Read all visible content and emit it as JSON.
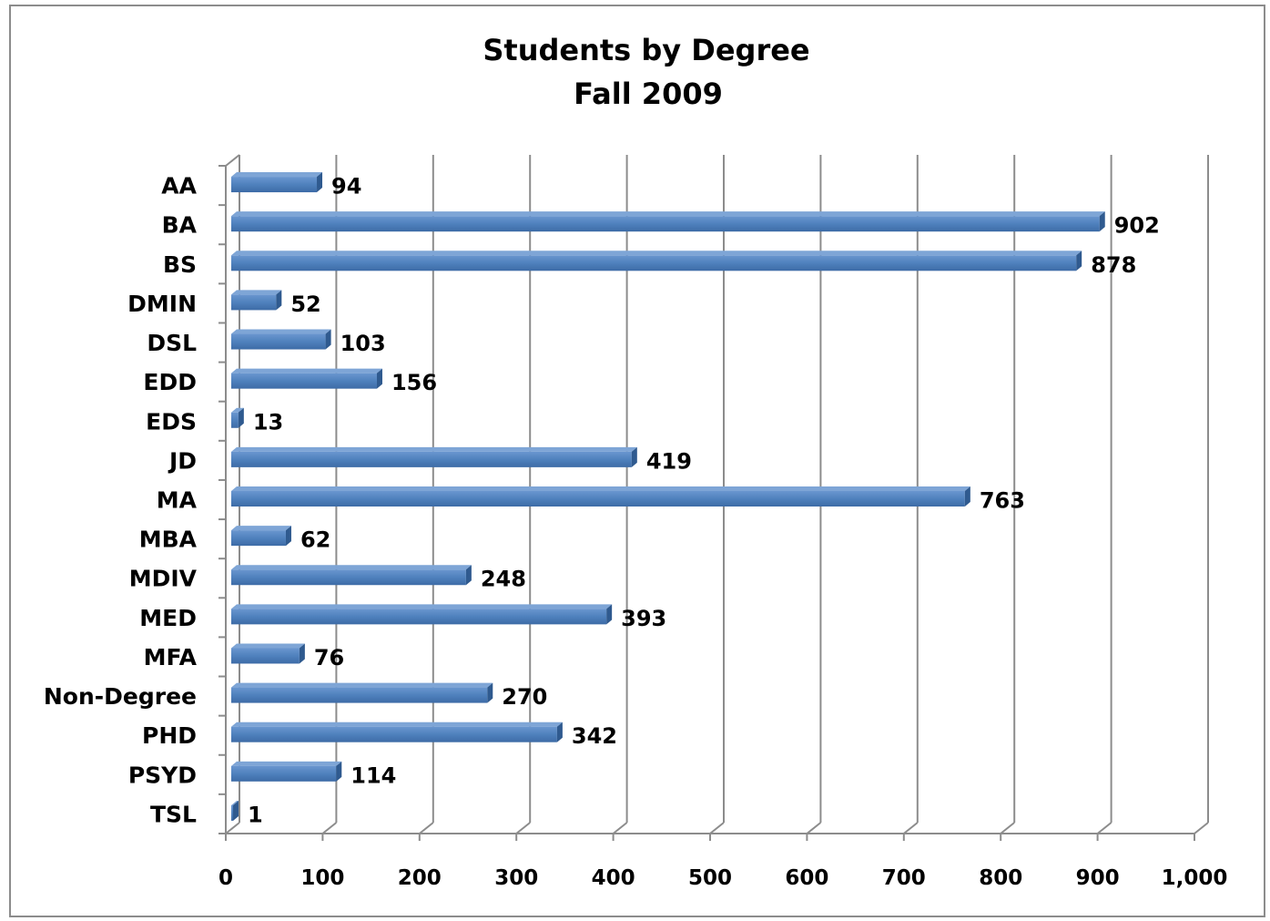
{
  "chart_data": {
    "type": "bar",
    "orientation": "horizontal",
    "title": "Students by Degree",
    "subtitle": "Fall 2009",
    "xlabel": "",
    "ylabel": "",
    "xlim": [
      0,
      1000
    ],
    "xticks": [
      0,
      100,
      200,
      300,
      400,
      500,
      600,
      700,
      800,
      900,
      1000
    ],
    "xtick_labels": [
      "0",
      "100",
      "200",
      "300",
      "400",
      "500",
      "600",
      "700",
      "800",
      "900",
      "1,000"
    ],
    "grid": true,
    "legend": "none",
    "categories": [
      "AA",
      "BA",
      "BS",
      "DMIN",
      "DSL",
      "EDD",
      "EDS",
      "JD",
      "MA",
      "MBA",
      "MDIV",
      "MED",
      "MFA",
      "Non-Degree",
      "PHD",
      "PSYD",
      "TSL"
    ],
    "values": [
      94,
      902,
      878,
      52,
      103,
      156,
      13,
      419,
      763,
      62,
      248,
      393,
      76,
      270,
      342,
      114,
      1
    ],
    "value_labels": [
      "94",
      "902",
      "878",
      "52",
      "103",
      "156",
      "13",
      "419",
      "763",
      "62",
      "248",
      "393",
      "76",
      "270",
      "342",
      "114",
      "1"
    ],
    "bar_color": "#4f81bd"
  }
}
